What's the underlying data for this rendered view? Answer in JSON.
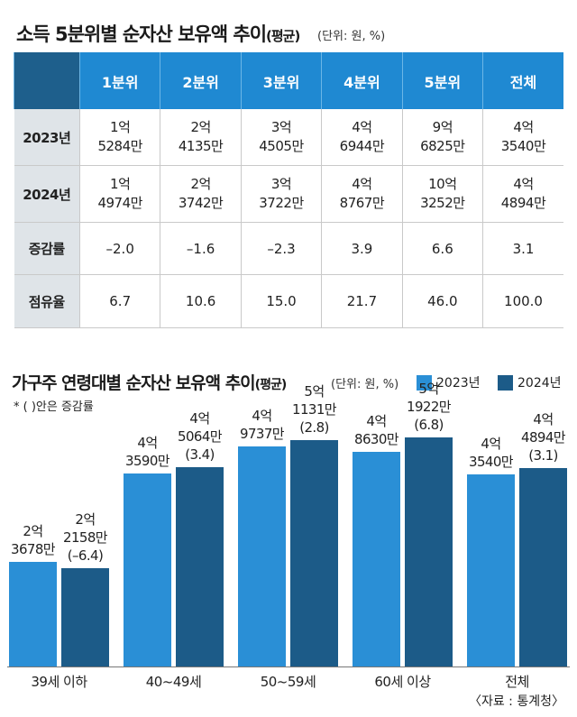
{
  "title1": {
    "main": "소득 5분위별 순자산 보유액 추이",
    "paren": "(평균)",
    "unit": "(단위: 원, %)"
  },
  "table": {
    "columns": [
      "1분위",
      "2분위",
      "3분위",
      "4분위",
      "5분위",
      "전체"
    ],
    "rows": [
      {
        "label": "2023년",
        "cells": [
          [
            "1억",
            "5284만"
          ],
          [
            "2억",
            "4135만"
          ],
          [
            "3억",
            "4505만"
          ],
          [
            "4억",
            "6944만"
          ],
          [
            "9억",
            "6825만"
          ],
          [
            "4억",
            "3540만"
          ]
        ]
      },
      {
        "label": "2024년",
        "cells": [
          [
            "1억",
            "4974만"
          ],
          [
            "2억",
            "3742만"
          ],
          [
            "3억",
            "3722만"
          ],
          [
            "4억",
            "8767만"
          ],
          [
            "10억",
            "3252만"
          ],
          [
            "4억",
            "4894만"
          ]
        ]
      },
      {
        "label": "증감률",
        "cells": [
          "–2.0",
          "–1.6",
          "–2.3",
          "3.9",
          "6.6",
          "3.1"
        ]
      },
      {
        "label": "점유율",
        "cells": [
          "6.7",
          "10.6",
          "15.0",
          "21.7",
          "46.0",
          "100.0"
        ]
      }
    ]
  },
  "title2": {
    "main": "가구주 연령대별 순자산 보유액 추이",
    "paren": "(평균)",
    "unit": "(단위: 원, %)"
  },
  "note": "* ( )안은 증감률",
  "source": "〈자료 : 통계청〉",
  "colors": {
    "s2023": "#2a8fd6",
    "s2024": "#1c5b88",
    "header": "#1f89d2",
    "corner": "#1e5f8c",
    "rowhead": "#dfe4e8"
  },
  "chart_data": {
    "type": "bar",
    "categories": [
      "39세 이하",
      "40~49세",
      "50~59세",
      "60세 이상",
      "전체"
    ],
    "series": [
      {
        "name": "2023년",
        "values": [
          236780000,
          435900000,
          497370000,
          486300000,
          435400000
        ],
        "labels": [
          [
            "2억",
            "3678만"
          ],
          [
            "4억",
            "3590만"
          ],
          [
            "4억",
            "9737만"
          ],
          [
            "4억",
            "8630만"
          ],
          [
            "4억",
            "3540만"
          ]
        ]
      },
      {
        "name": "2024년",
        "values": [
          221580000,
          450640000,
          511310000,
          519220000,
          448940000
        ],
        "labels": [
          [
            "2억",
            "2158만",
            "(–6.4)"
          ],
          [
            "4억",
            "5064만",
            "(3.4)"
          ],
          [
            "5억",
            "1131만",
            "(2.8)"
          ],
          [
            "5억",
            "1922만",
            "(6.8)"
          ],
          [
            "4억",
            "4894만",
            "(3.1)"
          ]
        ]
      }
    ]
  }
}
